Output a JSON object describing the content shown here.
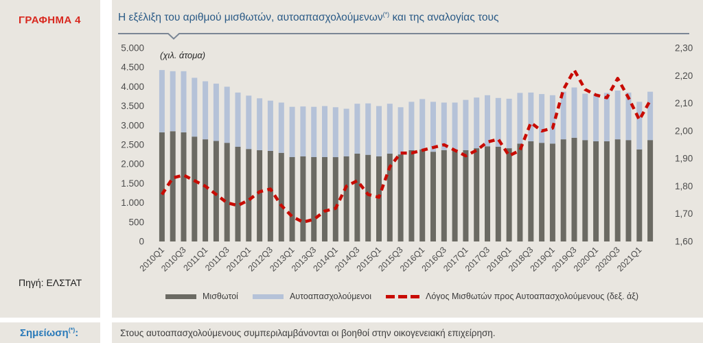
{
  "page": {
    "figure_label": "ΓΡΑΦΗΜΑ 4",
    "source_label": "Πηγή: ΕΛΣΤΑΤ",
    "note_label": "Σημείωση",
    "note_label_sup": "(*)",
    "note_colon": ":",
    "note_text": "Στους αυτοαπασχολούμενους συμπεριλαμβάνονται οι βοηθοί στην οικογενειακή επιχείρηση."
  },
  "chart": {
    "title_main": "Η εξέλιξη του αριθμού μισθωτών, αυτοαπασχολούμενων",
    "title_sup": "(*)",
    "title_tail": " και της αναλογίας τους",
    "units_note": "(χιλ. άτομα)"
  },
  "colors": {
    "employees_bar": "#6b6a63",
    "selfemployed_bar": "#b5c2d8",
    "ratio_line": "#c80b02",
    "panel_background": "#e9e6e0",
    "title_blue": "#2a5a86",
    "figure_red": "#d8281f",
    "note_blue": "#2a7ab9"
  },
  "chart_data": {
    "type": "bar",
    "subtype": "stacked-bars-with-dashed-line",
    "grid": false,
    "legend_position": "bottom",
    "categories": [
      "2010Q1",
      "2010Q2",
      "2010Q3",
      "2010Q4",
      "2011Q1",
      "2011Q2",
      "2011Q3",
      "2011Q4",
      "2012Q1",
      "2012Q2",
      "2012Q3",
      "2012Q4",
      "2013Q1",
      "2013Q2",
      "2013Q3",
      "2013Q4",
      "2014Q1",
      "2014Q2",
      "2014Q3",
      "2014Q4",
      "2015Q1",
      "2015Q2",
      "2015Q3",
      "2015Q4",
      "2016Q1",
      "2016Q2",
      "2016Q3",
      "2016Q4",
      "2017Q1",
      "2017Q2",
      "2017Q3",
      "2017Q4",
      "2018Q1",
      "2018Q2",
      "2018Q3",
      "2018Q4",
      "2019Q1",
      "2019Q2",
      "2019Q3",
      "2019Q4",
      "2020Q1",
      "2020Q2",
      "2020Q3",
      "2020Q4",
      "2021Q1",
      "2021Q2"
    ],
    "x_tick_labels": [
      "2010Q1",
      "2010Q3",
      "2011Q1",
      "2011Q3",
      "2012Q1",
      "2012Q3",
      "2013Q1",
      "2013Q3",
      "2014Q1",
      "2014Q3",
      "2015Q1",
      "2015Q3",
      "2016Q1",
      "2016Q3",
      "2017Q1",
      "2017Q3",
      "2018Q1",
      "2018Q3",
      "2019Q1",
      "2019Q3",
      "2020Q1",
      "2020Q3",
      "2021Q1"
    ],
    "series": [
      {
        "name": "Μισθωτοί",
        "type": "bar-stack",
        "axis": "left",
        "color": "#6b6a63",
        "values": [
          2820,
          2850,
          2820,
          2710,
          2640,
          2600,
          2550,
          2450,
          2390,
          2360,
          2340,
          2290,
          2180,
          2200,
          2180,
          2180,
          2180,
          2200,
          2270,
          2240,
          2200,
          2270,
          2250,
          2360,
          2380,
          2320,
          2360,
          2380,
          2360,
          2410,
          2460,
          2450,
          2410,
          2530,
          2590,
          2550,
          2530,
          2640,
          2680,
          2620,
          2590,
          2590,
          2640,
          2620,
          2380,
          2620
        ]
      },
      {
        "name": "Αυτοαπασχολούμενοι",
        "type": "bar-stack",
        "axis": "left",
        "color": "#b5c2d8",
        "values": [
          1610,
          1550,
          1580,
          1520,
          1500,
          1480,
          1450,
          1400,
          1380,
          1340,
          1300,
          1300,
          1300,
          1290,
          1300,
          1320,
          1290,
          1230,
          1290,
          1330,
          1300,
          1290,
          1220,
          1250,
          1300,
          1290,
          1230,
          1210,
          1300,
          1310,
          1320,
          1260,
          1280,
          1310,
          1260,
          1260,
          1250,
          1230,
          1300,
          1200,
          1230,
          1250,
          1260,
          1230,
          1230,
          1250
        ]
      },
      {
        "name": "Λόγος Μισθωτών προς Αυτοαπασχολούμενους (δεξ. άξ)",
        "type": "line-dashed",
        "axis": "right",
        "color": "#c80b02",
        "values": [
          1.77,
          1.83,
          1.84,
          1.82,
          1.8,
          1.77,
          1.74,
          1.73,
          1.75,
          1.78,
          1.79,
          1.73,
          1.69,
          1.67,
          1.68,
          1.71,
          1.72,
          1.8,
          1.82,
          1.77,
          1.76,
          1.87,
          1.92,
          1.92,
          1.93,
          1.94,
          1.95,
          1.93,
          1.91,
          1.93,
          1.96,
          1.97,
          1.91,
          1.93,
          2.03,
          2.0,
          2.01,
          2.15,
          2.22,
          2.15,
          2.13,
          2.12,
          2.19,
          2.12,
          2.04,
          2.11
        ]
      }
    ],
    "left_axis": {
      "min": 0,
      "max": 5000,
      "step": 500,
      "tick_labels": [
        "5.000",
        "4.500",
        "4.000",
        "3.500",
        "3.000",
        "2.500",
        "2.000",
        "1.500",
        "1.000",
        "500",
        "0"
      ]
    },
    "right_axis": {
      "min": 1.6,
      "max": 2.3,
      "step": 0.1,
      "tick_labels": [
        "2,30",
        "2,20",
        "2,10",
        "2,00",
        "1,90",
        "1,80",
        "1,70",
        "1,60"
      ]
    }
  }
}
